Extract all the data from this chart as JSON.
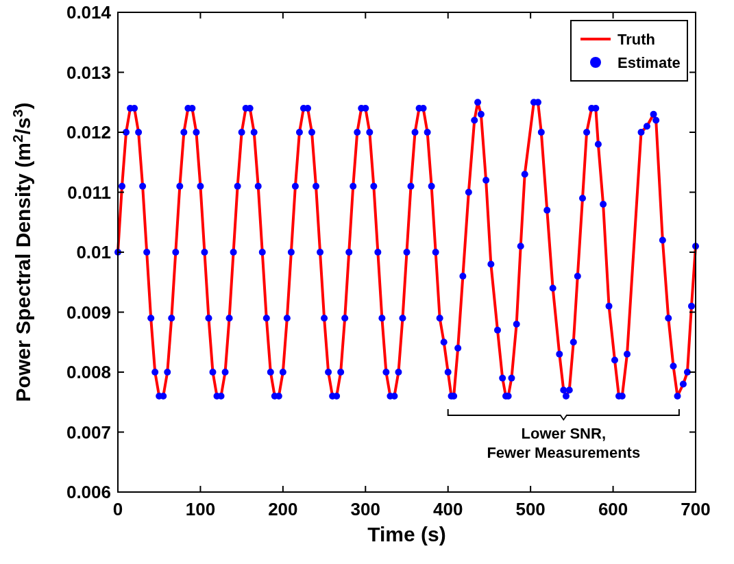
{
  "chart_data": {
    "type": "line",
    "xlabel": "Time (s)",
    "ylabel": "Power Spectral Density (m$^{2}$/s$^{3}$)",
    "x": [
      0,
      5,
      10,
      15,
      20,
      25,
      30,
      35,
      40,
      45,
      50,
      55,
      60,
      65,
      70,
      75,
      80,
      85,
      90,
      95,
      100,
      105,
      110,
      115,
      120,
      125,
      130,
      135,
      140,
      145,
      150,
      155,
      160,
      165,
      170,
      175,
      180,
      185,
      190,
      195,
      200,
      205,
      210,
      215,
      220,
      225,
      230,
      235,
      240,
      245,
      250,
      255,
      260,
      265,
      270,
      275,
      280,
      285,
      290,
      295,
      300,
      305,
      310,
      315,
      320,
      325,
      330,
      335,
      340,
      345,
      350,
      355,
      360,
      365,
      370,
      375,
      380,
      385,
      390,
      395,
      400,
      404,
      407,
      412,
      418,
      425,
      432,
      436,
      440,
      446,
      452,
      460,
      466,
      470,
      473,
      477,
      483,
      488,
      493,
      504,
      509,
      513,
      520,
      527,
      535,
      540,
      543,
      547,
      552,
      557,
      563,
      568,
      574,
      579,
      582,
      588,
      595,
      602,
      607,
      611,
      617,
      634,
      641,
      649,
      652,
      660,
      667,
      673,
      678,
      685,
      690,
      695,
      700
    ],
    "series": [
      {
        "name": "Truth",
        "color": "#ff0000",
        "values": [
          0.01,
          0.0111,
          0.012,
          0.0124,
          0.0124,
          0.012,
          0.0111,
          0.01,
          0.0089,
          0.008,
          0.0076,
          0.0076,
          0.008,
          0.0089,
          0.01,
          0.0111,
          0.012,
          0.0124,
          0.0124,
          0.012,
          0.0111,
          0.01,
          0.0089,
          0.008,
          0.0076,
          0.0076,
          0.008,
          0.0089,
          0.01,
          0.0111,
          0.012,
          0.0124,
          0.0124,
          0.012,
          0.0111,
          0.01,
          0.0089,
          0.008,
          0.0076,
          0.0076,
          0.008,
          0.0089,
          0.01,
          0.0111,
          0.012,
          0.0124,
          0.0124,
          0.012,
          0.0111,
          0.01,
          0.0089,
          0.008,
          0.0076,
          0.0076,
          0.008,
          0.0089,
          0.01,
          0.0111,
          0.012,
          0.0124,
          0.0124,
          0.012,
          0.0111,
          0.01,
          0.0089,
          0.008,
          0.0076,
          0.0076,
          0.008,
          0.0089,
          0.01,
          0.0111,
          0.012,
          0.0124,
          0.0124,
          0.012,
          0.0111,
          0.01,
          0.0089,
          0.0085,
          0.008,
          0.0076,
          0.0076,
          0.0084,
          0.0096,
          0.011,
          0.0122,
          0.0125,
          0.0123,
          0.0112,
          0.0098,
          0.0087,
          0.0079,
          0.0076,
          0.0076,
          0.0079,
          0.0088,
          0.0101,
          0.0113,
          0.0125,
          0.0125,
          0.012,
          0.0107,
          0.0094,
          0.0083,
          0.0077,
          0.0076,
          0.0077,
          0.0085,
          0.0096,
          0.0109,
          0.012,
          0.0124,
          0.0124,
          0.0118,
          0.0108,
          0.0091,
          0.0082,
          0.0076,
          0.0076,
          0.0083,
          0.012,
          0.0121,
          0.0123,
          0.0122,
          0.0102,
          0.0089,
          0.0081,
          0.0076,
          0.0078,
          0.008,
          0.0091,
          0.0101
        ]
      },
      {
        "name": "Estimate",
        "type": "scatter",
        "marker": "circle",
        "color": "#0000ff",
        "values": [
          0.01,
          0.0111,
          0.012,
          0.0124,
          0.0124,
          0.012,
          0.0111,
          0.01,
          0.0089,
          0.008,
          0.0076,
          0.0076,
          0.008,
          0.0089,
          0.01,
          0.0111,
          0.012,
          0.0124,
          0.0124,
          0.012,
          0.0111,
          0.01,
          0.0089,
          0.008,
          0.0076,
          0.0076,
          0.008,
          0.0089,
          0.01,
          0.0111,
          0.012,
          0.0124,
          0.0124,
          0.012,
          0.0111,
          0.01,
          0.0089,
          0.008,
          0.0076,
          0.0076,
          0.008,
          0.0089,
          0.01,
          0.0111,
          0.012,
          0.0124,
          0.0124,
          0.012,
          0.0111,
          0.01,
          0.0089,
          0.008,
          0.0076,
          0.0076,
          0.008,
          0.0089,
          0.01,
          0.0111,
          0.012,
          0.0124,
          0.0124,
          0.012,
          0.0111,
          0.01,
          0.0089,
          0.008,
          0.0076,
          0.0076,
          0.008,
          0.0089,
          0.01,
          0.0111,
          0.012,
          0.0124,
          0.0124,
          0.012,
          0.0111,
          0.01,
          0.0089,
          0.0085,
          0.008,
          0.0076,
          0.0076,
          0.0084,
          0.0096,
          0.011,
          0.0122,
          0.0125,
          0.0123,
          0.0112,
          0.0098,
          0.0087,
          0.0079,
          0.0076,
          0.0076,
          0.0079,
          0.0088,
          0.0101,
          0.0113,
          0.0125,
          0.0125,
          0.012,
          0.0107,
          0.0094,
          0.0083,
          0.0077,
          0.0076,
          0.0077,
          0.0085,
          0.0096,
          0.0109,
          0.012,
          0.0124,
          0.0124,
          0.0118,
          0.0108,
          0.0091,
          0.0082,
          0.0076,
          0.0076,
          0.0083,
          0.012,
          0.0121,
          0.0123,
          0.0122,
          0.0102,
          0.0089,
          0.0081,
          0.0076,
          0.0078,
          0.008,
          0.0091,
          0.0101
        ]
      }
    ],
    "xlim": [
      0,
      700
    ],
    "xticks": [
      0,
      100,
      200,
      300,
      400,
      500,
      600,
      700
    ],
    "ylim": [
      0.006,
      0.014
    ],
    "yticks": [
      0.006,
      0.007,
      0.008,
      0.009,
      0.01,
      0.011,
      0.012,
      0.013,
      0.014
    ],
    "grid": false,
    "legend": "top right",
    "line_style": "solid",
    "annotations": [
      "Lower SNR,\nFewer Measurements"
    ]
  }
}
